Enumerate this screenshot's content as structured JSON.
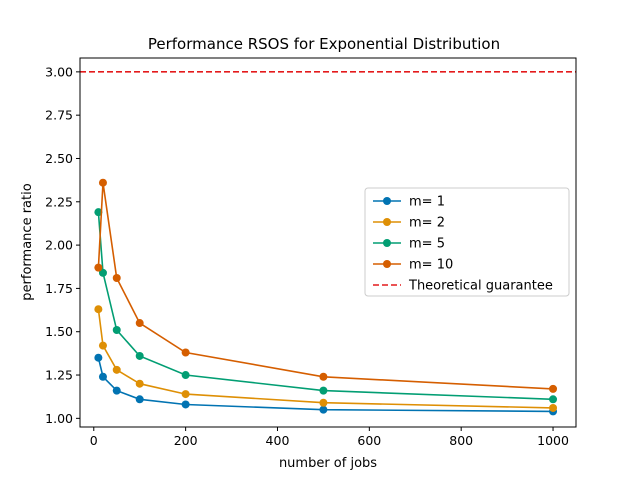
{
  "chart_data": {
    "type": "line",
    "title": "Performance RSOS for Exponential Distribution",
    "xlabel": "number of jobs",
    "ylabel": "performance ratio",
    "xlim": [
      -30,
      1050
    ],
    "ylim": [
      0.95,
      3.08
    ],
    "xticks": [
      0,
      200,
      400,
      600,
      800,
      1000
    ],
    "yticks": [
      1.0,
      1.25,
      1.5,
      1.75,
      2.0,
      2.25,
      2.5,
      2.75,
      3.0
    ],
    "xtick_labels": [
      "0",
      "200",
      "400",
      "600",
      "800",
      "1000"
    ],
    "ytick_labels": [
      "1.00",
      "1.25",
      "1.50",
      "1.75",
      "2.00",
      "2.25",
      "2.50",
      "2.75",
      "3.00"
    ],
    "x": [
      10,
      20,
      50,
      100,
      200,
      500,
      1000
    ],
    "series": [
      {
        "name": "m= 1",
        "color": "#0173b2",
        "values": [
          1.35,
          1.24,
          1.16,
          1.11,
          1.08,
          1.05,
          1.04
        ]
      },
      {
        "name": "m= 2",
        "color": "#de8f05",
        "values": [
          1.63,
          1.42,
          1.28,
          1.2,
          1.14,
          1.09,
          1.06
        ]
      },
      {
        "name": "m= 5",
        "color": "#029e73",
        "values": [
          2.19,
          1.84,
          1.51,
          1.36,
          1.25,
          1.16,
          1.11
        ]
      },
      {
        "name": "m= 10",
        "color": "#d55e00",
        "values": [
          1.87,
          2.36,
          1.81,
          1.55,
          1.38,
          1.24,
          1.17
        ]
      }
    ],
    "reference_line": {
      "name": "Theoretical guarantee",
      "y": 3.0,
      "color": "#e41a1c",
      "style": "dashed"
    },
    "legend_position": "center-right",
    "grid": false
  }
}
